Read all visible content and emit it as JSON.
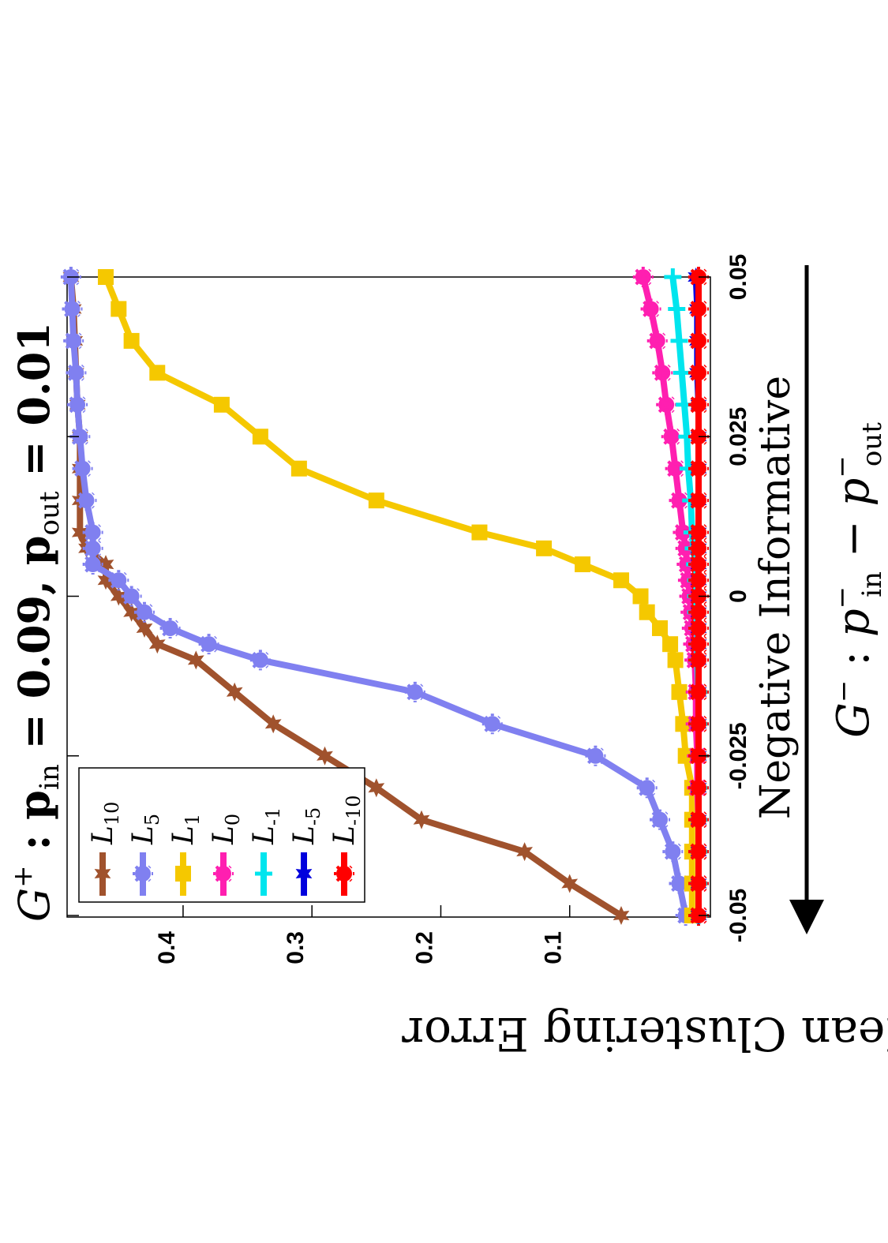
{
  "chart_data": {
    "type": "line",
    "title": {
      "g": "G",
      "g_sup": "+",
      "colon": " : ",
      "p": "p",
      "sub_in": "in",
      "eq_in": " = 0.09,  ",
      "sub_out": "out",
      "eq_out": " = 0.01"
    },
    "ylabel": "Mean Clustering Error",
    "xlabel": {
      "g": "G",
      "g_sup": "−",
      "colon": " : ",
      "p": "p",
      "sub_in": "in",
      "sup_in": "−",
      "minus": " − ",
      "sub_out": "out",
      "sup_out": "−"
    },
    "annotation": "Negative Informative",
    "xlim": [
      -0.05,
      0.05
    ],
    "ylim": [
      0,
      0.49
    ],
    "x_ticks": [
      -0.05,
      -0.025,
      0,
      0.025,
      0.05
    ],
    "x_tick_labels": [
      "-0.05",
      "-0.025",
      "0",
      "0.025",
      "0.05"
    ],
    "y_ticks": [
      0.1,
      0.2,
      0.3,
      0.4
    ],
    "y_tick_labels": [
      "0.1",
      "0.2",
      "0.3",
      "0.4"
    ],
    "grid": false,
    "legend_position": "top-left",
    "x": [
      -0.05,
      -0.045,
      -0.04,
      -0.035,
      -0.03,
      -0.025,
      -0.02,
      -0.015,
      -0.01,
      -0.0075,
      -0.005,
      -0.0025,
      0,
      0.0025,
      0.005,
      0.0075,
      0.01,
      0.015,
      0.02,
      0.025,
      0.03,
      0.035,
      0.04,
      0.045,
      0.05
    ],
    "series": [
      {
        "name": "L",
        "sub": "10",
        "color": "#a0522d",
        "marker": "star",
        "values": [
          0.06,
          0.1,
          0.135,
          0.215,
          0.25,
          0.29,
          0.33,
          0.36,
          0.39,
          0.42,
          0.43,
          0.44,
          0.45,
          0.46,
          0.46,
          0.475,
          0.48,
          0.48,
          0.48,
          0.48,
          0.482,
          0.483,
          0.484,
          0.485,
          0.487
        ]
      },
      {
        "name": "L",
        "sub": "5",
        "color": "#8080f0",
        "marker": "gear",
        "values": [
          0.01,
          0.015,
          0.02,
          0.03,
          0.04,
          0.08,
          0.16,
          0.22,
          0.34,
          0.38,
          0.41,
          0.43,
          0.44,
          0.45,
          0.47,
          0.47,
          0.47,
          0.475,
          0.478,
          0.48,
          0.482,
          0.483,
          0.485,
          0.486,
          0.487
        ]
      },
      {
        "name": "L",
        "sub": "1",
        "color": "#f5c800",
        "marker": "square",
        "values": [
          0.005,
          0.005,
          0.005,
          0.005,
          0.005,
          0.01,
          0.012,
          0.015,
          0.018,
          0.022,
          0.03,
          0.04,
          0.045,
          0.06,
          0.09,
          0.12,
          0.17,
          0.25,
          0.31,
          0.34,
          0.37,
          0.42,
          0.44,
          0.45,
          0.46
        ]
      },
      {
        "name": "L",
        "sub": "0",
        "color": "#ff1fb0",
        "marker": "gear",
        "values": [
          0.0,
          0.0,
          0.0,
          0.0,
          0.001,
          0.001,
          0.002,
          0.002,
          0.003,
          0.004,
          0.005,
          0.006,
          0.007,
          0.008,
          0.009,
          0.01,
          0.012,
          0.015,
          0.018,
          0.021,
          0.025,
          0.028,
          0.032,
          0.037,
          0.043
        ]
      },
      {
        "name": "L",
        "sub": "-1",
        "color": "#00e5ee",
        "marker": "plus",
        "values": [
          0.0,
          0.0,
          0.0,
          0.0,
          0.0,
          0.0,
          0.0,
          0.0,
          0.001,
          0.001,
          0.001,
          0.002,
          0.002,
          0.002,
          0.003,
          0.004,
          0.005,
          0.006,
          0.008,
          0.009,
          0.011,
          0.013,
          0.015,
          0.017,
          0.02
        ]
      },
      {
        "name": "L",
        "sub": "-5",
        "color": "#0000dd",
        "marker": "star",
        "values": [
          0.0,
          0.0,
          0.0,
          0.0,
          0.0,
          0.0,
          0.0,
          0.0,
          0.0,
          0.0,
          0.0,
          0.0,
          0.0,
          0.0,
          0.0,
          0.0,
          0.0,
          0.0,
          0.0,
          0.0,
          0.0,
          0.001,
          0.001,
          0.001,
          0.002
        ]
      },
      {
        "name": "L",
        "sub": "-10",
        "color": "#ff0000",
        "marker": "gear",
        "values": [
          0.0,
          0.0,
          0.0,
          0.0,
          0.0,
          0.0,
          0.0,
          0.0,
          0.0,
          0.0,
          0.0,
          0.0,
          0.0,
          0.0,
          0.0,
          0.0,
          0.0,
          0.0,
          0.0,
          0.0,
          0.0,
          0.0,
          0.0,
          0.0,
          0.0
        ]
      }
    ]
  }
}
